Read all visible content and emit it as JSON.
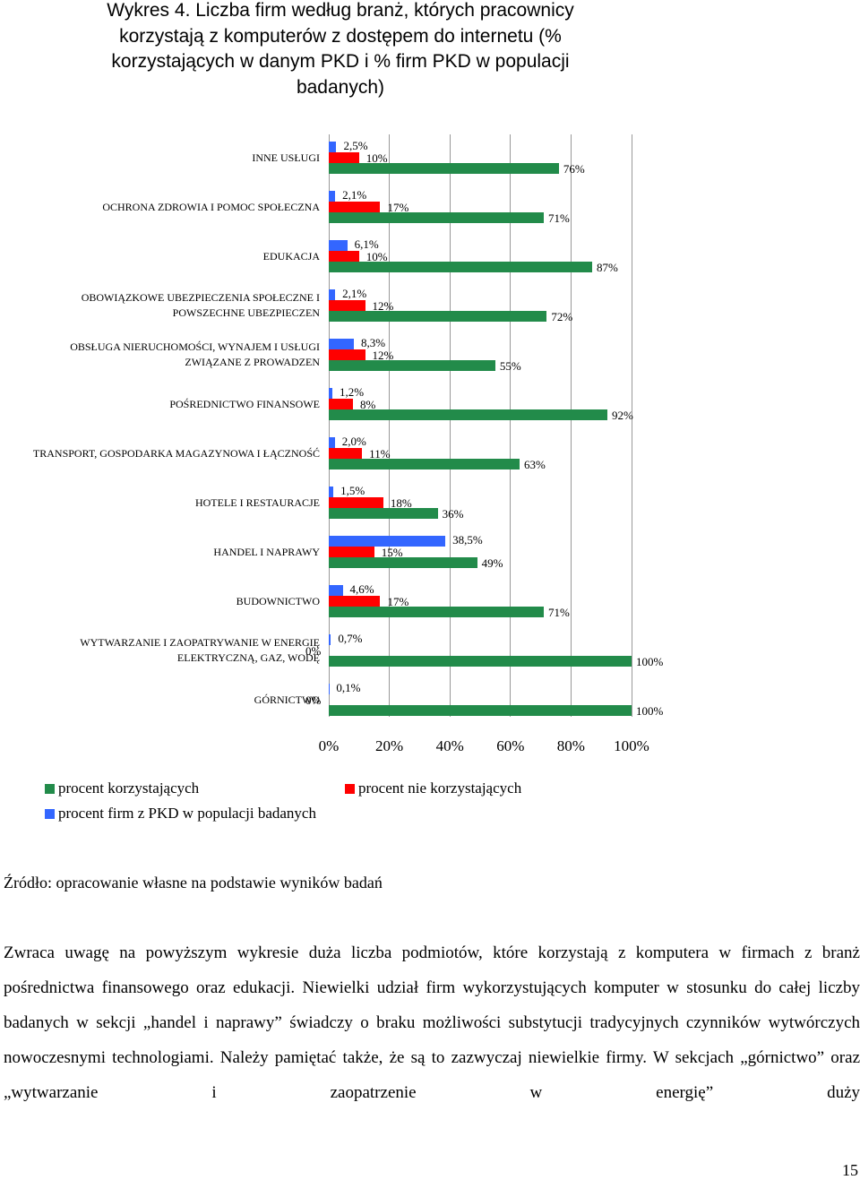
{
  "title": "Wykres 4. Liczba firm według branż, których pracownicy korzystają z komputerów z dostępem do internetu (% korzystających w danym PKD i % firm PKD w populacji badanych)",
  "chart_data": {
    "type": "bar",
    "orientation": "horizontal",
    "categories": [
      "INNE USŁUGI",
      "OCHRONA ZDROWIA I POMOC SPOŁECZNA",
      "EDUKACJA",
      "OBOWIĄZKOWE UBEZPIECZENIA SPOŁECZNE I POWSZECHNE UBEZPIECZEN",
      "OBSŁUGA NIERUCHOMOŚCI, WYNAJEM I USŁUGI ZWIĄZANE Z PROWADZEN",
      "POŚREDNICTWO FINANSOWE",
      "TRANSPORT, GOSPODARKA MAGAZYNOWA I ŁĄCZNOŚĆ",
      "HOTELE I RESTAURACJE",
      "HANDEL I NAPRAWY",
      "BUDOWNICTWO",
      "WYTWARZANIE I ZAOPATRYWANIE W ENERGIĘ ELEKTRYCZNĄ, GAZ, WODĘ",
      "GÓRNICTWO"
    ],
    "series": [
      {
        "name": "procent firm z PKD w populacji badanych",
        "color": "#3366ff",
        "values": [
          2.5,
          2.1,
          6.1,
          2.1,
          8.3,
          1.2,
          2.0,
          1.5,
          38.5,
          4.6,
          0.7,
          0.1
        ],
        "value_labels": [
          "2,5%",
          "2,1%",
          "6,1%",
          "2,1%",
          "8,3%",
          "1,2%",
          "2,0%",
          "1,5%",
          "38,5%",
          "4,6%",
          "0,7%",
          "0,1%"
        ]
      },
      {
        "name": "procent nie korzystających",
        "color": "#ff0000",
        "values": [
          10,
          17,
          10,
          12,
          12,
          8,
          11,
          18,
          15,
          17,
          0,
          0
        ],
        "value_labels": [
          "10%",
          "17%",
          "10%",
          "12%",
          "12%",
          "8%",
          "11%",
          "18%",
          "15%",
          "17%",
          "0%",
          "0%"
        ]
      },
      {
        "name": "procent korzystających",
        "color": "#228b4a",
        "values": [
          76,
          71,
          87,
          72,
          55,
          92,
          63,
          36,
          49,
          71,
          100,
          100
        ],
        "value_labels": [
          "76%",
          "71%",
          "87%",
          "72%",
          "55%",
          "92%",
          "63%",
          "36%",
          "49%",
          "71%",
          "100%",
          "100%"
        ]
      }
    ],
    "xlim": [
      0,
      100
    ],
    "xticks": [
      {
        "value": 0,
        "label": "0%"
      },
      {
        "value": 20,
        "label": "20%"
      },
      {
        "value": 40,
        "label": "40%"
      },
      {
        "value": 60,
        "label": "60%"
      },
      {
        "value": 80,
        "label": "80%"
      },
      {
        "value": 100,
        "label": "100%"
      }
    ],
    "grid": true
  },
  "source": "Źródło: opracowanie własne na podstawie wyników badań",
  "paragraph": "Zwraca uwagę na powyższym wykresie duża liczba podmiotów, które korzystają z komputera w firmach z branż pośrednictwa finansowego oraz edukacji. Niewielki udział firm wykorzystujących komputer w stosunku do całej liczby badanych w sekcji „handel i naprawy” świadczy o braku możliwości substytucji tradycyjnych czynników wytwórczych nowoczesnymi technologiami. Należy pamiętać także, że są to zazwyczaj niewielkie firmy. W sekcjach „górnictwo” oraz „wytwarzanie i zaopatrzenie w energię” duży",
  "page_number": "15"
}
